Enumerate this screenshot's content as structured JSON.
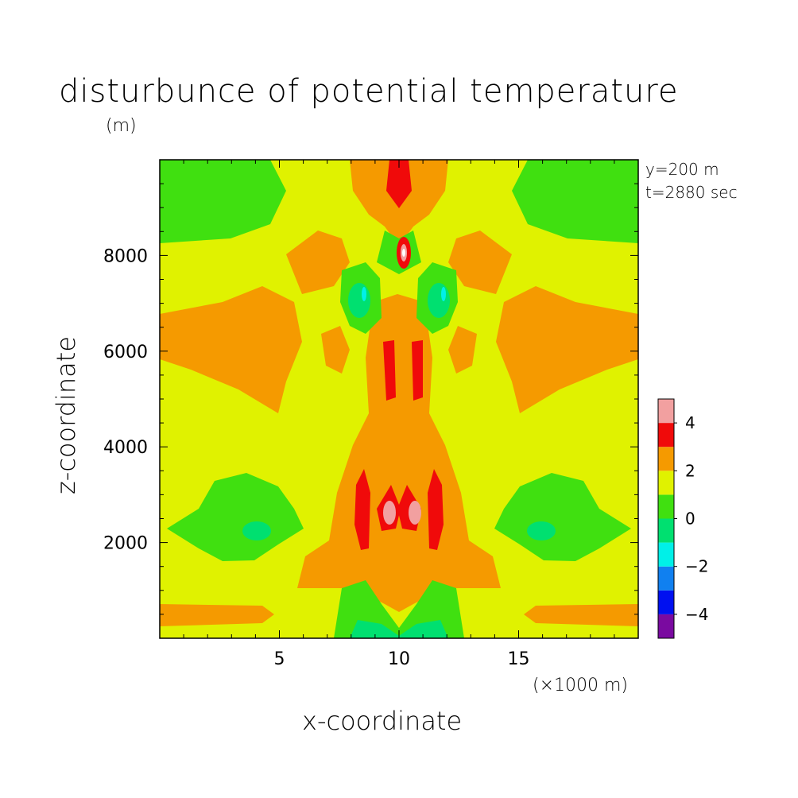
{
  "chart_data": {
    "type": "heatmap",
    "title": "disturbunce of potential temperature",
    "ylabel": "z-coordinate",
    "xlabel": "x-coordinate",
    "y_unit": "(m)",
    "x_unit": "(×1000 m)",
    "annotations": [
      "y=200 m",
      "t=2880 sec"
    ],
    "xlim": [
      0,
      20
    ],
    "ylim": [
      0,
      10000
    ],
    "x_ticks": [
      5,
      10,
      15
    ],
    "y_ticks": [
      2000,
      4000,
      6000,
      8000
    ],
    "colorbar": {
      "levels": [
        -5,
        -4,
        -3,
        -2,
        -1,
        0,
        1,
        2,
        3,
        4,
        5
      ],
      "tick_labels": [
        -4,
        -2,
        0,
        2,
        4
      ],
      "colors": [
        "#7a0aa0",
        "#0010f0",
        "#1080f0",
        "#00f0e8",
        "#00e070",
        "#40e010",
        "#e0f200",
        "#f59a00",
        "#f00a0a",
        "#f2a0a0"
      ]
    },
    "features": [
      {
        "desc": "large warm lobe",
        "x": [
          0,
          6
        ],
        "z": [
          4800,
          7000
        ],
        "level": "2 to 3"
      },
      {
        "desc": "large warm lobe",
        "x": [
          14,
          20
        ],
        "z": [
          4800,
          7000
        ],
        "level": "2 to 3"
      },
      {
        "desc": "cool patch",
        "x": [
          0,
          4
        ],
        "z": [
          8200,
          10000
        ],
        "level": "0 to 1"
      },
      {
        "desc": "cool patch",
        "x": [
          16,
          20
        ],
        "z": [
          8200,
          10000
        ],
        "level": "0 to 1"
      },
      {
        "desc": "cool lobe",
        "x": [
          0,
          6
        ],
        "z": [
          1800,
          3400
        ],
        "level": "0 to 1"
      },
      {
        "desc": "cool lobe",
        "x": [
          14,
          20
        ],
        "z": [
          1800,
          3400
        ],
        "level": "0 to 1"
      },
      {
        "desc": "warm core",
        "x": [
          8,
          12
        ],
        "z": [
          1800,
          3200
        ],
        "level": "4 to 5"
      },
      {
        "desc": "warm maximum",
        "x": [
          10,
          10.5
        ],
        "z": [
          7800,
          8300
        ],
        "level": "above 5"
      },
      {
        "desc": "warm column",
        "x": [
          9.5,
          10.8
        ],
        "z": [
          9000,
          10000
        ],
        "level": "3 to 4"
      }
    ]
  }
}
